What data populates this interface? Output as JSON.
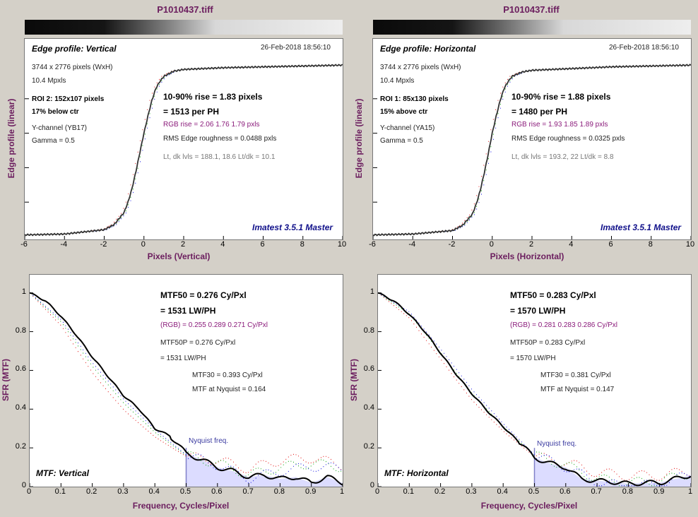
{
  "panels": [
    {
      "title": "P1010437.tiff",
      "edge": {
        "label": "Edge profile: Vertical",
        "date": "26-Feb-2018 18:56:10",
        "size": "3744 x 2776 pixels (WxH)",
        "mpx": "10.4 Mpxls",
        "roi": "ROI 2:  152x107 pixels",
        "pos": "17% below ctr",
        "channel": "Y-channel  (YB17)",
        "gamma": "Gamma = 0.5",
        "rise": "10-90% rise = 1.83 pixels",
        "per_ph": "= 1513 per PH",
        "rgb_rise": "RGB rise = 2.06  1.76  1.79 pxls",
        "rms": "RMS Edge roughness = 0.0488 pxls",
        "levels": "Lt, dk lvls = 188.1, 18.6   Lt/dk = 10.1",
        "brand": "Imatest 3.5.1 Master",
        "xlabel": "Pixels (Vertical)",
        "ylabel": "Edge profile (linear)",
        "xticks": [
          "-6",
          "-4",
          "-2",
          "0",
          "2",
          "4",
          "6",
          "8",
          "10"
        ]
      },
      "mtf": {
        "label": "MTF: Vertical",
        "mtf50": "MTF50 = 0.276 Cy/Pxl",
        "lwph": "= 1531 LW/PH",
        "rgb": "(RGB) = 0.255  0.289  0.271 Cy/Pxl",
        "mtf50p": "MTF50P = 0.276 Cy/Pxl",
        "lwph_p": "= 1531 LW/PH",
        "mtf30": "MTF30 = 0.393 Cy/Pxl",
        "nyq_val": "MTF at Nyquist = 0.164",
        "nyq_label": "Nyquist freq.",
        "xlabel": "Frequency, Cycles/Pixel",
        "ylabel": "SFR (MTF)",
        "xticks": [
          "0",
          "0.1",
          "0.2",
          "0.3",
          "0.4",
          "0.5",
          "0.6",
          "0.7",
          "0.8",
          "0.9",
          "1"
        ],
        "yticks": [
          "0",
          "0.2",
          "0.4",
          "0.6",
          "0.8",
          "1"
        ]
      }
    },
    {
      "title": "P1010437.tiff",
      "edge": {
        "label": "Edge profile: Horizontal",
        "date": "26-Feb-2018 18:56:10",
        "size": "3744 x 2776 pixels (WxH)",
        "mpx": "10.4 Mpxls",
        "roi": "ROI 1:  85x130 pixels",
        "pos": "15% above ctr",
        "channel": "Y-channel  (YA15)",
        "gamma": "Gamma = 0.5",
        "rise": "10-90% rise = 1.88 pixels",
        "per_ph": "= 1480 per PH",
        "rgb_rise": "RGB rise = 1.93  1.85  1.89 pxls",
        "rms": "RMS Edge roughness = 0.0325 pxls",
        "levels": "Lt, dk lvls = 193.2, 22   Lt/dk = 8.8",
        "brand": "Imatest 3.5.1 Master",
        "xlabel": "Pixels (Horizontal)",
        "ylabel": "Edge profile (linear)",
        "xticks": [
          "-6",
          "-4",
          "-2",
          "0",
          "2",
          "4",
          "6",
          "8",
          "10"
        ]
      },
      "mtf": {
        "label": "MTF: Horizontal",
        "mtf50": "MTF50 = 0.283 Cy/Pxl",
        "lwph": "= 1570 LW/PH",
        "rgb": "(RGB) = 0.281  0.283  0.286 Cy/Pxl",
        "mtf50p": "MTF50P = 0.283 Cy/Pxl",
        "lwph_p": "= 1570 LW/PH",
        "mtf30": "MTF30 = 0.381 Cy/Pxl",
        "nyq_val": "MTF at Nyquist = 0.147",
        "nyq_label": "Nyquist freq.",
        "xlabel": "Frequency, Cycles/Pixel",
        "ylabel": "SFR (MTF)",
        "xticks": [
          "0",
          "0.1",
          "0.2",
          "0.3",
          "0.4",
          "0.5",
          "0.6",
          "0.7",
          "0.8",
          "0.9",
          "1"
        ],
        "yticks": [
          "0",
          "0.2",
          "0.4",
          "0.6",
          "0.8",
          "1"
        ]
      }
    }
  ],
  "colors": {
    "title": "#6b1d5e",
    "curve": "#333333",
    "nyquist_fill": "#dcdcff",
    "nyquist_line": "#8080c8",
    "red": "#e00000",
    "green": "#00a000",
    "blue": "#0000e0"
  },
  "chart_data": [
    {
      "type": "line",
      "title": "Edge profile: Vertical",
      "xlabel": "Pixels (Vertical)",
      "ylabel": "Edge profile (linear)",
      "xlim": [
        -6,
        10
      ],
      "ylim": [
        0,
        1
      ],
      "series": [
        {
          "x": [
            -6,
            -4,
            -2,
            -1.5,
            -1,
            -0.8,
            -0.6,
            -0.4,
            -0.2,
            0,
            0.2,
            0.4,
            0.6,
            0.8,
            1,
            1.5,
            2,
            3,
            4,
            6,
            8,
            10
          ],
          "y": [
            0.01,
            0.015,
            0.04,
            0.07,
            0.14,
            0.2,
            0.28,
            0.38,
            0.49,
            0.6,
            0.7,
            0.79,
            0.86,
            0.9,
            0.93,
            0.96,
            0.97,
            0.975,
            0.98,
            0.985,
            0.99,
            0.995
          ]
        }
      ]
    },
    {
      "type": "line",
      "title": "Edge profile: Horizontal",
      "xlabel": "Pixels (Horizontal)",
      "ylabel": "Edge profile (linear)",
      "xlim": [
        -6,
        10
      ],
      "ylim": [
        0,
        1
      ],
      "series": [
        {
          "x": [
            -6,
            -4,
            -2,
            -1.5,
            -1,
            -0.8,
            -0.6,
            -0.4,
            -0.2,
            0,
            0.2,
            0.4,
            0.6,
            0.8,
            1,
            1.5,
            2,
            3,
            4,
            6,
            8,
            10
          ],
          "y": [
            0.01,
            0.015,
            0.035,
            0.065,
            0.13,
            0.19,
            0.27,
            0.37,
            0.48,
            0.6,
            0.7,
            0.79,
            0.86,
            0.9,
            0.93,
            0.955,
            0.965,
            0.97,
            0.975,
            0.985,
            0.99,
            0.995
          ]
        }
      ]
    },
    {
      "type": "line",
      "title": "MTF: Vertical",
      "xlabel": "Frequency, Cycles/Pixel",
      "ylabel": "SFR (MTF)",
      "xlim": [
        0,
        1
      ],
      "ylim": [
        0,
        1.05
      ],
      "nyquist": 0.5,
      "series": [
        {
          "x": [
            0,
            0.05,
            0.1,
            0.15,
            0.2,
            0.25,
            0.3,
            0.35,
            0.4,
            0.45,
            0.5,
            0.55,
            0.6,
            0.65,
            0.7,
            0.75,
            0.8,
            0.85,
            0.9,
            0.95,
            1
          ],
          "y": [
            1.0,
            0.96,
            0.88,
            0.78,
            0.67,
            0.57,
            0.47,
            0.4,
            0.3,
            0.26,
            0.17,
            0.14,
            0.1,
            0.08,
            0.05,
            0.06,
            0.04,
            0.05,
            0.02,
            0.05,
            0.02
          ]
        },
        {
          "x": [
            0,
            0.1,
            0.2,
            0.3,
            0.4,
            0.5,
            0.6,
            0.7,
            0.8,
            0.9,
            1
          ],
          "y": [
            1.0,
            0.85,
            0.62,
            0.43,
            0.28,
            0.16,
            0.12,
            0.06,
            0.1,
            0.12,
            0.1
          ]
        }
      ]
    },
    {
      "type": "line",
      "title": "MTF: Horizontal",
      "xlabel": "Frequency, Cycles/Pixel",
      "ylabel": "SFR (MTF)",
      "xlim": [
        0,
        1
      ],
      "ylim": [
        0,
        1.05
      ],
      "nyquist": 0.5,
      "series": [
        {
          "x": [
            0,
            0.05,
            0.1,
            0.15,
            0.2,
            0.25,
            0.3,
            0.35,
            0.4,
            0.45,
            0.5,
            0.55,
            0.6,
            0.65,
            0.7,
            0.75,
            0.8,
            0.85,
            0.9,
            0.95,
            1
          ],
          "y": [
            1.0,
            0.96,
            0.89,
            0.8,
            0.69,
            0.58,
            0.48,
            0.39,
            0.31,
            0.23,
            0.15,
            0.12,
            0.1,
            0.04,
            0.03,
            0.025,
            0.015,
            0.02,
            0.02,
            0.04,
            0.06
          ]
        },
        {
          "x": [
            0,
            0.1,
            0.2,
            0.3,
            0.4,
            0.5,
            0.6,
            0.7,
            0.8,
            0.9,
            1
          ],
          "y": [
            1.0,
            0.89,
            0.69,
            0.48,
            0.31,
            0.16,
            0.11,
            0.04,
            0.02,
            0.03,
            0.07
          ]
        }
      ]
    }
  ]
}
